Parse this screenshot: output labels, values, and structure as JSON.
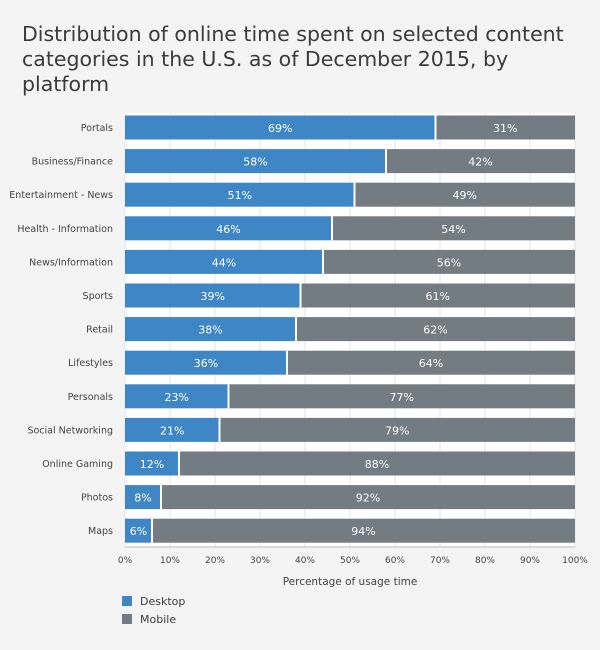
{
  "chart_data": {
    "type": "bar",
    "orientation": "horizontal",
    "stacked": true,
    "title": "Distribution of online time spent on selected content categories in the U.S. as of December 2015, by platform",
    "xlabel": "Percentage of usage time",
    "ylabel": "",
    "xlim": [
      0,
      100
    ],
    "x_ticks": [
      "0%",
      "10%",
      "20%",
      "30%",
      "40%",
      "50%",
      "60%",
      "70%",
      "80%",
      "90%",
      "100%"
    ],
    "grid": true,
    "legend_position": "bottom-left",
    "categories": [
      "Portals",
      "Business/Finance",
      "Entertainment - News",
      "Health - Information",
      "News/Information",
      "Sports",
      "Retail",
      "Lifestyles",
      "Personals",
      "Social Networking",
      "Online Gaming",
      "Photos",
      "Maps"
    ],
    "series": [
      {
        "name": "Desktop",
        "color": "#3e86c6",
        "values": [
          69,
          58,
          51,
          46,
          44,
          39,
          38,
          36,
          23,
          21,
          12,
          8,
          6
        ]
      },
      {
        "name": "Mobile",
        "color": "#737b83",
        "values": [
          31,
          42,
          49,
          54,
          56,
          61,
          62,
          64,
          77,
          79,
          88,
          92,
          94
        ]
      }
    ]
  }
}
